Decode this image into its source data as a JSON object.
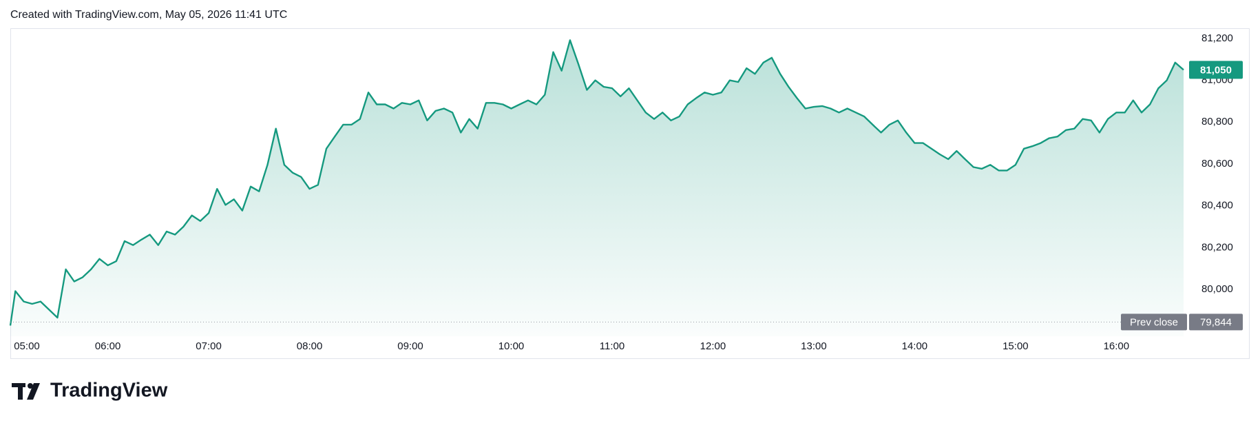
{
  "header": "Created with TradingView.com, May 05, 2026 11:41 UTC",
  "footer_logo": "TradingView",
  "chart_data": {
    "type": "area",
    "color": "#15997f",
    "x": [
      "05:02",
      "05:05",
      "05:10",
      "05:15",
      "05:20",
      "05:25",
      "05:30",
      "05:35",
      "05:40",
      "05:45",
      "05:50",
      "05:55",
      "06:00",
      "06:05",
      "06:10",
      "06:15",
      "06:20",
      "06:25",
      "06:30",
      "06:35",
      "06:40",
      "06:45",
      "06:50",
      "06:55",
      "07:00",
      "07:05",
      "07:10",
      "07:15",
      "07:20",
      "07:25",
      "07:30",
      "07:35",
      "07:40",
      "07:45",
      "07:50",
      "07:55",
      "08:00",
      "08:05",
      "08:10",
      "08:15",
      "08:20",
      "08:25",
      "08:30",
      "08:35",
      "08:40",
      "08:45",
      "08:50",
      "08:55",
      "09:00",
      "09:05",
      "09:10",
      "09:15",
      "09:20",
      "09:25",
      "09:30",
      "09:35",
      "09:40",
      "09:45",
      "09:50",
      "09:55",
      "10:00",
      "10:05",
      "10:10",
      "10:15",
      "10:20",
      "10:25",
      "10:30",
      "10:35",
      "10:40",
      "10:45",
      "10:50",
      "10:55",
      "11:00",
      "11:05",
      "11:10",
      "11:15",
      "11:20",
      "11:25",
      "11:30",
      "11:35",
      "11:40",
      "11:45",
      "11:50",
      "11:55",
      "12:00",
      "12:05",
      "12:10",
      "12:15",
      "12:20",
      "12:25",
      "12:30",
      "12:35",
      "12:40",
      "12:45",
      "12:50",
      "12:55",
      "13:00",
      "13:05",
      "13:10",
      "13:15",
      "13:20",
      "13:25",
      "13:30",
      "13:35",
      "13:40",
      "13:45",
      "13:50",
      "13:55",
      "14:00",
      "14:05",
      "14:10",
      "14:15",
      "14:20",
      "14:25",
      "14:30",
      "14:35",
      "14:40",
      "14:45",
      "14:50",
      "14:55",
      "15:00",
      "15:05",
      "15:10",
      "15:15",
      "15:20",
      "15:25",
      "15:30",
      "15:35",
      "15:40",
      "15:45",
      "15:50",
      "15:55",
      "16:00",
      "16:05",
      "16:10",
      "16:15",
      "16:20",
      "16:25",
      "16:30",
      "16:35",
      "16:40"
    ],
    "values": [
      79827,
      79992,
      79942,
      79931,
      79942,
      79904,
      79865,
      80096,
      80038,
      80058,
      80096,
      80146,
      80115,
      80135,
      80231,
      80212,
      80238,
      80262,
      80212,
      80277,
      80262,
      80300,
      80354,
      80327,
      80365,
      80481,
      80404,
      80431,
      80377,
      80492,
      80469,
      80596,
      80769,
      80596,
      80558,
      80538,
      80481,
      80500,
      80673,
      80731,
      80788,
      80788,
      80815,
      80942,
      80885,
      80885,
      80865,
      80892,
      80885,
      80904,
      80808,
      80854,
      80865,
      80846,
      80750,
      80815,
      80769,
      80892,
      80892,
      80885,
      80865,
      80885,
      80904,
      80885,
      80931,
      81135,
      81046,
      81192,
      81077,
      80954,
      81000,
      80969,
      80962,
      80923,
      80962,
      80904,
      80846,
      80815,
      80846,
      80808,
      80827,
      80885,
      80915,
      80942,
      80931,
      80942,
      81000,
      80992,
      81058,
      81031,
      81085,
      81108,
      81031,
      80969,
      80915,
      80865,
      80873,
      80877,
      80865,
      80846,
      80865,
      80846,
      80827,
      80788,
      80750,
      80788,
      80808,
      80750,
      80700,
      80700,
      80673,
      80646,
      80623,
      80662,
      80623,
      80585,
      80577,
      80596,
      80569,
      80569,
      80596,
      80673,
      80685,
      80700,
      80723,
      80731,
      80762,
      80769,
      80815,
      80808,
      80750,
      80815,
      80846,
      80846,
      80904,
      80846,
      80885,
      80962,
      81000,
      81085,
      81050
    ],
    "xlim": [
      "05:02",
      "16:40"
    ],
    "xticks": [
      "05:00",
      "06:00",
      "07:00",
      "08:00",
      "09:00",
      "10:00",
      "11:00",
      "12:00",
      "13:00",
      "14:00",
      "15:00",
      "16:00"
    ],
    "ylim": [
      79776,
      81249
    ],
    "yticks": [
      {
        "value": 80000,
        "label": "80,000"
      },
      {
        "value": 80200,
        "label": "80,200"
      },
      {
        "value": 80400,
        "label": "80,400"
      },
      {
        "value": 80600,
        "label": "80,600"
      },
      {
        "value": 80800,
        "label": "80,800"
      },
      {
        "value": 81000,
        "label": "81,000"
      },
      {
        "value": 81200,
        "label": "81,200"
      }
    ],
    "last_price": {
      "value": 81050,
      "label": "81,050"
    },
    "prev_close": {
      "name": "Prev close",
      "value": 79844,
      "label": "79,844"
    }
  }
}
